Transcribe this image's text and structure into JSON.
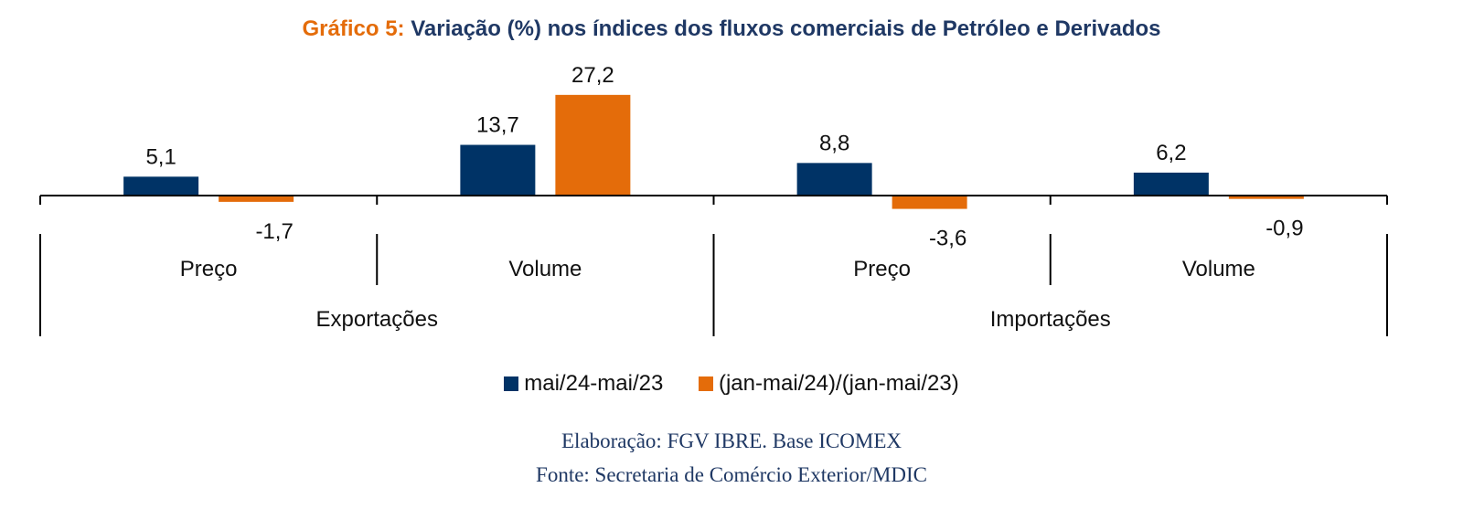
{
  "title_prefix": "Gráfico 5:",
  "title_main": " Variação (%) nos índices dos fluxos comerciais de Petróleo e Derivados",
  "colors": {
    "series1": "#003366",
    "series2": "#e46c0a",
    "axis": "#000000"
  },
  "chart_data": {
    "type": "bar",
    "groups": [
      "Exportações",
      "Importações"
    ],
    "categories": [
      "Preço",
      "Volume",
      "Preço",
      "Volume"
    ],
    "series": [
      {
        "name": "mai/24-mai/23",
        "values": [
          5.1,
          13.7,
          8.8,
          6.2
        ],
        "labels": [
          "5,1",
          "13,7",
          "8,8",
          "6,2"
        ]
      },
      {
        "name": "(jan-mai/24)/(jan-mai/23)",
        "values": [
          -1.7,
          27.2,
          -3.6,
          -0.9
        ],
        "labels": [
          "-1,7",
          "27,2",
          "-3,6",
          "-0,9"
        ]
      }
    ]
  },
  "footer": {
    "line1": "Elaboração: FGV IBRE. Base ICOMEX",
    "line2": "Fonte: Secretaria de Comércio Exterior/MDIC"
  }
}
